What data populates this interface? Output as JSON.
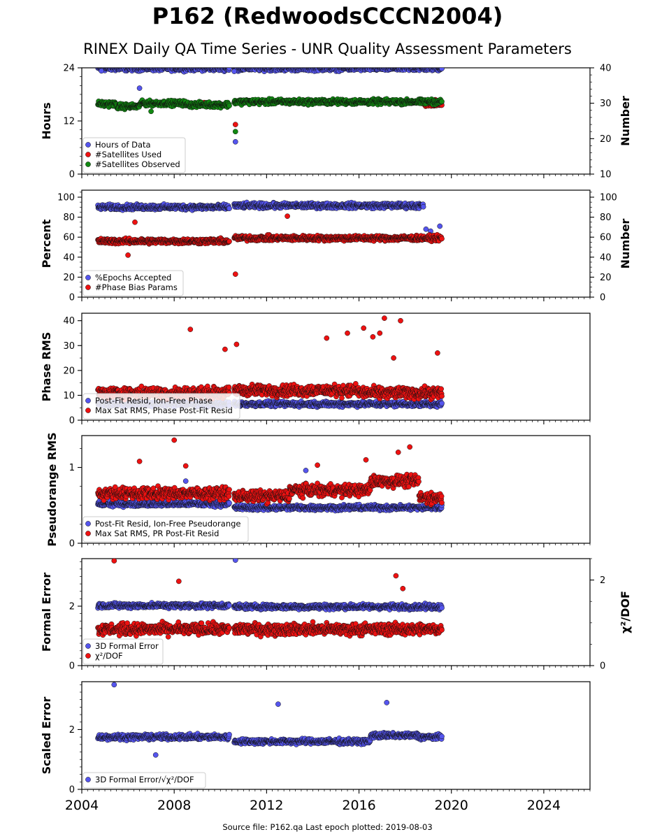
{
  "header": {
    "title": "P162 (RedwoodsCCCN2004)",
    "subtitle": "RINEX Daily QA Time Series - UNR Quality Assessment Parameters"
  },
  "footer": {
    "source": "Source file: P162.qa Last epoch plotted: 2019-08-03"
  },
  "colors": {
    "blue": "#5555ee",
    "red": "#ee1111",
    "green": "#118811"
  },
  "chart_data": {
    "type": "scatter",
    "x_axis": {
      "range": [
        2004.0,
        2026.0
      ],
      "ticks": [
        2004,
        2008,
        2012,
        2016,
        2020,
        2024
      ],
      "tick_labels": [
        "2004",
        "2008",
        "2012",
        "2016",
        "2020",
        "2024"
      ]
    },
    "panels": [
      {
        "ylabel": "Hours",
        "ylim": [
          0,
          24
        ],
        "yticks": [
          0,
          12,
          24
        ],
        "ylabel_right": "Number",
        "ylim_right": [
          10,
          40
        ],
        "yticks_right": [
          10,
          20,
          30,
          40
        ],
        "legend": [
          "Hours of Data",
          "#Satellites Used",
          "#Satellites Observed"
        ],
        "series": [
          {
            "name": "Hours of Data",
            "color": "blue",
            "axis": "left",
            "segments": [
              [
                2004.7,
                2010.4,
                23.9
              ],
              [
                2010.6,
                2019.6,
                23.9
              ]
            ],
            "outliers": [
              [
                2004.85,
                23.3
              ],
              [
                2006.5,
                19.4
              ],
              [
                2010.65,
                7.3
              ],
              [
                2010.6,
                23.2
              ]
            ]
          },
          {
            "name": "#Satellites Used",
            "color": "red",
            "axis": "right",
            "segments": [
              [
                2018.8,
                2019.6,
                29.8
              ]
            ],
            "outliers": [
              [
                2005.2,
                29.8
              ],
              [
                2009.3,
                30.2
              ],
              [
                2010.65,
                24.0
              ],
              [
                2019.3,
                31.0
              ]
            ]
          },
          {
            "name": "#Satellites Observed",
            "color": "green",
            "axis": "right",
            "segments": [
              [
                2004.7,
                2005.5,
                29.8
              ],
              [
                2005.5,
                2006.5,
                29.1
              ],
              [
                2006.5,
                2008.5,
                30.0
              ],
              [
                2008.5,
                2010.4,
                29.6
              ],
              [
                2010.6,
                2019.6,
                30.4
              ]
            ],
            "outliers": [
              [
                2010.65,
                22.0
              ],
              [
                2007.0,
                27.7
              ]
            ]
          }
        ]
      },
      {
        "ylabel": "Percent",
        "ylim": [
          0,
          107
        ],
        "yticks": [
          0,
          20,
          40,
          60,
          80,
          100
        ],
        "ylabel_right": "Number",
        "ylim_right": [
          0,
          107
        ],
        "yticks_right": [
          0,
          20,
          40,
          60,
          80,
          100
        ],
        "legend": [
          "%Epochs Accepted",
          "#Phase Bias Params"
        ],
        "series": [
          {
            "name": "%Epochs Accepted",
            "color": "blue",
            "axis": "left",
            "segments": [
              [
                2004.7,
                2010.4,
                90.0
              ],
              [
                2010.6,
                2018.8,
                91.5
              ]
            ],
            "outliers": [
              [
                2018.9,
                68.0
              ],
              [
                2019.1,
                66.0
              ],
              [
                2019.5,
                71.0
              ]
            ]
          },
          {
            "name": "#Phase Bias Params",
            "color": "red",
            "axis": "left",
            "segments": [
              [
                2004.7,
                2010.4,
                56.0
              ],
              [
                2010.6,
                2019.6,
                59.0
              ]
            ],
            "outliers": [
              [
                2006.3,
                75.0
              ],
              [
                2012.9,
                81.0
              ],
              [
                2010.65,
                23.0
              ],
              [
                2006.0,
                42.0
              ]
            ]
          }
        ]
      },
      {
        "ylabel": "Phase RMS",
        "ylim": [
          0,
          43
        ],
        "yticks": [
          0,
          10,
          20,
          30,
          40
        ],
        "legend": [
          "Post-Fit Resid, Ion-Free Phase",
          "Max Sat RMS, Phase Post-Fit Resid"
        ],
        "series": [
          {
            "name": "Post-Fit Resid, Ion-Free Phase",
            "color": "blue",
            "axis": "left",
            "segments": [
              [
                2004.7,
                2010.4,
                6.5
              ],
              [
                2010.6,
                2019.6,
                6.5
              ]
            ],
            "outliers": []
          },
          {
            "name": "Max Sat RMS, Phase Post-Fit Resid",
            "color": "red",
            "axis": "left",
            "segments": [
              [
                2004.7,
                2010.4,
                11.0
              ],
              [
                2010.6,
                2016.0,
                12.0
              ],
              [
                2016.0,
                2019.6,
                11.0
              ]
            ],
            "outliers": [
              [
                2008.7,
                36.5
              ],
              [
                2010.2,
                28.5
              ],
              [
                2010.7,
                30.5
              ],
              [
                2014.6,
                33.0
              ],
              [
                2015.5,
                35.0
              ],
              [
                2016.2,
                37.0
              ],
              [
                2016.6,
                33.5
              ],
              [
                2017.1,
                41.0
              ],
              [
                2016.9,
                35.0
              ],
              [
                2017.8,
                40.0
              ],
              [
                2017.5,
                25.0
              ],
              [
                2019.4,
                27.0
              ]
            ]
          }
        ]
      },
      {
        "ylabel": "Pseudorange RMS",
        "ylim": [
          0,
          1.42
        ],
        "yticks": [
          0,
          1
        ],
        "legend": [
          "Post-Fit Resid, Ion-Free Pseudorange",
          "Max Sat RMS, PR Post-Fit Resid"
        ],
        "series": [
          {
            "name": "Post-Fit Resid, Ion-Free Pseudorange",
            "color": "blue",
            "axis": "left",
            "segments": [
              [
                2004.7,
                2010.4,
                0.52
              ],
              [
                2010.6,
                2019.6,
                0.47
              ]
            ],
            "outliers": [
              [
                2013.7,
                0.96
              ],
              [
                2008.5,
                0.82
              ]
            ]
          },
          {
            "name": "Max Sat RMS, PR Post-Fit Resid",
            "color": "red",
            "axis": "left",
            "segments": [
              [
                2004.7,
                2010.4,
                0.66
              ],
              [
                2010.6,
                2013.0,
                0.62
              ],
              [
                2013.0,
                2016.5,
                0.7
              ],
              [
                2016.5,
                2018.6,
                0.82
              ],
              [
                2018.6,
                2019.6,
                0.6
              ]
            ],
            "outliers": [
              [
                2008.0,
                1.36
              ],
              [
                2018.2,
                1.27
              ],
              [
                2017.7,
                1.2
              ],
              [
                2016.3,
                1.1
              ],
              [
                2014.2,
                1.03
              ],
              [
                2008.5,
                1.02
              ],
              [
                2006.5,
                1.08
              ]
            ]
          }
        ]
      },
      {
        "ylabel": "Formal Error",
        "ylim": [
          0,
          3.6
        ],
        "yticks": [
          0,
          2
        ],
        "ylabel_right": "χ²/DOF",
        "ylim_right": [
          0,
          2.5
        ],
        "yticks_right": [
          0,
          2
        ],
        "legend": [
          "3D Formal Error",
          "χ²/DOF"
        ],
        "series": [
          {
            "name": "3D Formal Error",
            "color": "blue",
            "axis": "left",
            "segments": [
              [
                2004.7,
                2010.4,
                2.02
              ],
              [
                2010.6,
                2019.6,
                1.98
              ]
            ],
            "outliers": [
              [
                2010.65,
                3.55
              ]
            ]
          },
          {
            "name": "χ²/DOF",
            "color": "red",
            "axis": "right",
            "segments": [
              [
                2004.7,
                2010.4,
                0.85
              ],
              [
                2010.6,
                2019.6,
                0.85
              ]
            ],
            "outliers": [
              [
                2005.4,
                2.45
              ],
              [
                2017.6,
                2.1
              ],
              [
                2008.2,
                1.97
              ],
              [
                2017.9,
                1.8
              ]
            ]
          }
        ]
      },
      {
        "ylabel": "Scaled Error",
        "ylim": [
          0,
          3.6
        ],
        "yticks": [
          0,
          2
        ],
        "legend": [
          "3D Formal Error/√χ²/DOF"
        ],
        "series": [
          {
            "name": "3D Formal Error/√χ²/DOF",
            "color": "blue",
            "axis": "left",
            "segments": [
              [
                2004.7,
                2010.4,
                1.75
              ],
              [
                2010.6,
                2016.5,
                1.6
              ],
              [
                2016.5,
                2018.6,
                1.8
              ],
              [
                2018.6,
                2019.6,
                1.75
              ]
            ],
            "outliers": [
              [
                2005.4,
                3.5
              ],
              [
                2012.5,
                2.85
              ],
              [
                2017.2,
                2.9
              ],
              [
                2007.2,
                1.15
              ]
            ]
          }
        ]
      }
    ]
  }
}
